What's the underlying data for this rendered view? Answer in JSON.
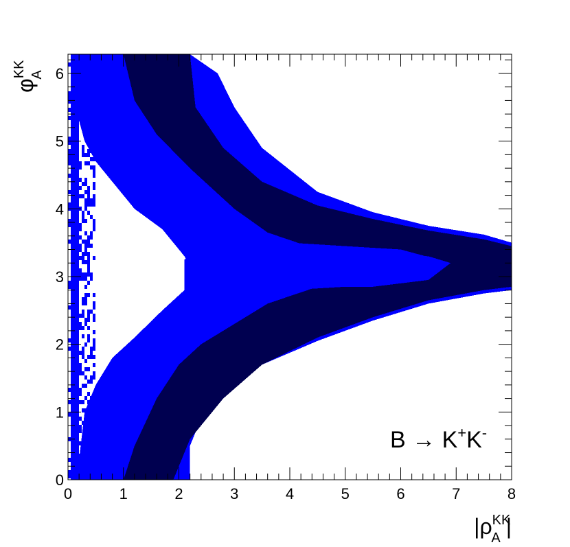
{
  "chart_data": {
    "type": "heatmap",
    "title": "",
    "xlabel": {
      "base": "|ρ",
      "sup": "KK",
      "sub": "A",
      "close": "|"
    },
    "ylabel": {
      "base": "φ",
      "sup": "KK",
      "sub": "A"
    },
    "xlim": [
      0,
      8
    ],
    "ylim": [
      0,
      6.2832
    ],
    "x_ticks": [
      "0",
      "1",
      "2",
      "3",
      "4",
      "5",
      "6",
      "7",
      "8"
    ],
    "y_ticks": [
      "0",
      "1",
      "2",
      "3",
      "4",
      "5",
      "6"
    ],
    "annotation": {
      "part1": "B → K",
      "sup1": "+",
      "part2": "K",
      "sup2": "-"
    },
    "grid": false,
    "legend": "none",
    "colors": {
      "outer_region": "#0000ff",
      "inner_region": "#000050",
      "frame": "#000000"
    },
    "regions": [
      {
        "name": "outer",
        "color": "#0000ff",
        "boundary": [
          [
            0.05,
            0.0
          ],
          [
            2.2,
            0.0
          ],
          [
            2.2,
            0.5
          ],
          [
            2.4,
            0.9
          ],
          [
            2.8,
            1.3
          ],
          [
            3.5,
            1.7
          ],
          [
            4.5,
            2.05
          ],
          [
            5.5,
            2.35
          ],
          [
            6.5,
            2.6
          ],
          [
            7.5,
            2.75
          ],
          [
            8.0,
            2.8
          ],
          [
            8.0,
            3.5
          ],
          [
            7.5,
            3.62
          ],
          [
            6.5,
            3.75
          ],
          [
            5.5,
            3.95
          ],
          [
            4.5,
            4.25
          ],
          [
            3.5,
            4.9
          ],
          [
            3.0,
            5.5
          ],
          [
            2.7,
            6.0
          ],
          [
            2.2,
            6.2832
          ],
          [
            0.05,
            6.2832
          ]
        ],
        "holes": [
          [
            [
              0.2,
              0.3
            ],
            [
              0.3,
              1.0
            ],
            [
              0.5,
              1.4
            ],
            [
              0.8,
              1.8
            ],
            [
              1.2,
              2.1
            ],
            [
              1.7,
              2.5
            ],
            [
              2.1,
              2.8
            ],
            [
              2.3,
              3.0
            ],
            [
              2.1,
              3.3
            ],
            [
              1.7,
              3.7
            ],
            [
              1.2,
              4.0
            ],
            [
              0.8,
              4.4
            ],
            [
              0.5,
              4.7
            ],
            [
              0.3,
              5.0
            ],
            [
              0.2,
              5.3
            ]
          ]
        ]
      },
      {
        "name": "inner",
        "color": "#000050",
        "boundary": [
          [
            1.0,
            0.0
          ],
          [
            1.9,
            0.0
          ],
          [
            2.2,
            0.6
          ],
          [
            2.8,
            1.2
          ],
          [
            3.5,
            1.7
          ],
          [
            4.5,
            2.1
          ],
          [
            5.5,
            2.4
          ],
          [
            6.5,
            2.65
          ],
          [
            7.5,
            2.8
          ],
          [
            8.0,
            2.85
          ],
          [
            8.0,
            3.45
          ],
          [
            7.5,
            3.55
          ],
          [
            6.5,
            3.68
          ],
          [
            5.5,
            3.85
          ],
          [
            4.5,
            4.05
          ],
          [
            3.5,
            4.4
          ],
          [
            2.8,
            4.9
          ],
          [
            2.3,
            5.5
          ],
          [
            2.2,
            6.2832
          ],
          [
            1.0,
            6.2832
          ],
          [
            1.2,
            5.6
          ],
          [
            1.6,
            5.1
          ],
          [
            2.2,
            4.6
          ],
          [
            3.0,
            4.0
          ],
          [
            3.6,
            3.65
          ],
          [
            4.5,
            3.4
          ],
          [
            5.5,
            3.35
          ],
          [
            6.5,
            3.3
          ],
          [
            6.9,
            3.2
          ],
          [
            6.5,
            2.95
          ],
          [
            5.5,
            2.85
          ],
          [
            4.5,
            2.85
          ],
          [
            3.6,
            2.6
          ],
          [
            3.0,
            2.3
          ],
          [
            2.4,
            2.0
          ],
          [
            2.0,
            1.7
          ],
          [
            1.6,
            1.2
          ],
          [
            1.2,
            0.5
          ]
        ],
        "holes": []
      },
      {
        "name": "center-band",
        "color": "#0000ff",
        "boundary": [
          [
            2.1,
            2.8
          ],
          [
            3.0,
            2.45
          ],
          [
            4.0,
            2.8
          ],
          [
            5.0,
            2.85
          ],
          [
            6.0,
            2.95
          ],
          [
            6.9,
            3.2
          ],
          [
            6.0,
            3.4
          ],
          [
            5.0,
            3.45
          ],
          [
            4.0,
            3.5
          ],
          [
            3.0,
            3.85
          ],
          [
            2.1,
            3.25
          ]
        ],
        "holes": [
          [
            [
              4.5,
              2.98
            ],
            [
              5.2,
              2.95
            ],
            [
              6.1,
              3.05
            ],
            [
              5.8,
              3.2
            ],
            [
              5.3,
              3.35
            ],
            [
              4.7,
              3.25
            ],
            [
              4.5,
              3.12
            ]
          ]
        ]
      }
    ]
  }
}
